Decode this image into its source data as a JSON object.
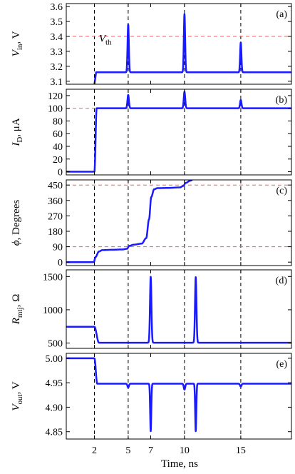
{
  "chart_data": [
    {
      "type": "line",
      "panel_label": "(a)",
      "ylabel": "V",
      "ylabel_sub": "in",
      "ylabel_unit": ", V",
      "ylim": [
        3.08,
        3.62
      ],
      "yticks": [
        3.1,
        3.2,
        3.3,
        3.4,
        3.5,
        3.6
      ],
      "ytick_labels": [
        "3.1",
        "3.2",
        "3.3",
        "3.4",
        "3.5",
        "3.6"
      ],
      "hlines": [
        3.4
      ],
      "annotation": {
        "text": "V",
        "sub": "th",
        "x": 2.4,
        "y": 3.365
      },
      "baseline": 3.16,
      "start": {
        "x": 2.0,
        "y": 3.08,
        "rise_end": 2.15
      },
      "pulses": [
        {
          "x": 5.0,
          "height": 0.32,
          "width": 0.08
        },
        {
          "x": 10.0,
          "height": 0.39,
          "width": 0.08
        },
        {
          "x": 15.0,
          "height": 0.2,
          "width": 0.08
        }
      ],
      "series": [
        {
          "color": "#1a1aff"
        }
      ]
    },
    {
      "type": "line",
      "panel_label": "(b)",
      "ylabel": "I",
      "ylabel_sub": "D",
      "ylabel_unit": ", μA",
      "ylim": [
        -5,
        130
      ],
      "yticks": [
        0,
        20,
        40,
        60,
        80,
        100,
        120
      ],
      "ytick_labels": [
        "0",
        "20",
        "40",
        "60",
        "80",
        "100",
        "120"
      ],
      "hlines": [
        100
      ],
      "initial": 0,
      "step": {
        "x": 2.0,
        "to": 100,
        "rise_end": 2.2
      },
      "pulses": [
        {
          "x": 5.0,
          "height": 21,
          "width": 0.09
        },
        {
          "x": 10.0,
          "height": 26,
          "width": 0.09
        },
        {
          "x": 15.0,
          "height": 13,
          "width": 0.09
        }
      ],
      "series": [
        {
          "color": "#1a1aff"
        }
      ]
    },
    {
      "type": "line",
      "panel_label": "(c)",
      "ylabel": "ϕ",
      "ylabel_sub": "",
      "ylabel_unit": ", Degrees",
      "ylim": [
        -20,
        480
      ],
      "yticks": [
        0,
        90,
        180,
        270,
        360,
        450
      ],
      "ytick_labels": [
        "0",
        "90",
        "180",
        "270",
        "360",
        "450"
      ],
      "hlines": [
        90,
        450
      ],
      "points": [
        [
          0,
          0
        ],
        [
          1.95,
          0
        ],
        [
          2.1,
          30
        ],
        [
          2.4,
          62
        ],
        [
          2.7,
          70
        ],
        [
          3.5,
          72
        ],
        [
          4.5,
          74
        ],
        [
          4.9,
          78
        ],
        [
          5.1,
          95
        ],
        [
          5.5,
          102
        ],
        [
          6.2,
          108
        ],
        [
          6.6,
          140
        ],
        [
          6.85,
          250
        ],
        [
          7.05,
          380
        ],
        [
          7.3,
          425
        ],
        [
          7.6,
          432
        ],
        [
          8.5,
          433
        ],
        [
          9.6,
          436
        ],
        [
          9.9,
          445
        ],
        [
          10.1,
          462
        ],
        [
          10.5,
          475
        ],
        [
          11.0,
          495
        ]
      ],
      "series": [
        {
          "color": "#1a1aff"
        }
      ]
    },
    {
      "type": "line",
      "panel_label": "(d)",
      "ylabel": "R",
      "ylabel_sub": "mtj",
      "ylabel_unit": ", Ω",
      "ylim": [
        420,
        1600
      ],
      "yticks": [
        500,
        1000,
        1500
      ],
      "ytick_labels": [
        "500",
        "1000",
        "1500"
      ],
      "initial": 745,
      "step": {
        "x": 2.0,
        "to": 505,
        "rise_end": 2.4
      },
      "pulses": [
        {
          "x": 7.0,
          "height": 990,
          "width": 0.09
        },
        {
          "x": 11.0,
          "height": 985,
          "width": 0.09
        }
      ],
      "series": [
        {
          "color": "#1a1aff"
        }
      ]
    },
    {
      "type": "line",
      "panel_label": "(e)",
      "ylabel": "V",
      "ylabel_sub": "out",
      "ylabel_unit": ", V",
      "ylim": [
        4.835,
        5.01
      ],
      "yticks": [
        4.85,
        4.9,
        4.95,
        5.0
      ],
      "ytick_labels": [
        "4.85",
        "4.90",
        "4.95",
        "5.00"
      ],
      "initial": 5.0,
      "step": {
        "x": 2.0,
        "to": 4.948,
        "rise_end": 2.25
      },
      "pulses": [
        {
          "x": 5.0,
          "height": -0.008,
          "width": 0.09
        },
        {
          "x": 7.0,
          "height": -0.097,
          "width": 0.07
        },
        {
          "x": 10.0,
          "height": -0.012,
          "width": 0.09
        },
        {
          "x": 11.0,
          "height": -0.097,
          "width": 0.07
        },
        {
          "x": 15.0,
          "height": -0.006,
          "width": 0.09
        }
      ],
      "series": [
        {
          "color": "#1a1aff"
        }
      ]
    }
  ],
  "xaxis": {
    "xlim": [
      -0.5,
      19.5
    ],
    "xticks": [
      2,
      5,
      7,
      10,
      15
    ],
    "xtick_labels": [
      "2",
      "5",
      "7",
      "10",
      "15"
    ],
    "xlabel": "Time, ns",
    "vlines": [
      2,
      5,
      10,
      15
    ]
  },
  "colors": {
    "curve": "#1a1aff",
    "threshold": "#ff5a5a",
    "vline": "#000000"
  }
}
